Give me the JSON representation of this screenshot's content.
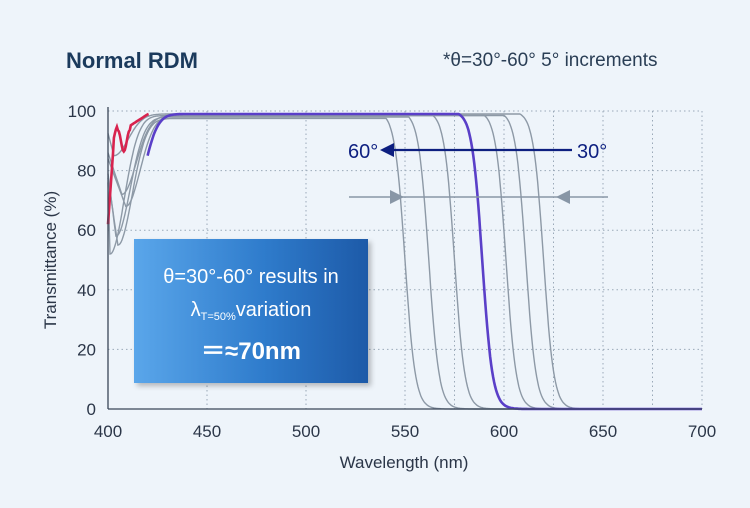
{
  "header": {
    "title": "Normal RDM",
    "note": "*θ=30°-60° 5° increments"
  },
  "callout": {
    "line1": "θ=30°-60° results in",
    "lambda": "λ",
    "subscript": "T=50%",
    "variation": "variation",
    "line3": "＝≈70nm"
  },
  "annotations": {
    "label_60": "60°",
    "label_30": "30°"
  },
  "colors": {
    "axis": "#3a4658",
    "grid": "#9aa9b8",
    "gray_curve": "#8d99a6",
    "highlight_curve": "#5a3fc8",
    "red_segment": "#d8234e",
    "arrow_dark": "#0d1f80",
    "arrow_gray": "#8896a6"
  },
  "chart_data": {
    "type": "line",
    "title": "Normal RDM",
    "xlabel": "Wavelength (nm)",
    "ylabel": "Transmittance (%)",
    "xlim": [
      400,
      700
    ],
    "ylim": [
      0,
      100
    ],
    "xticks": [
      400,
      450,
      500,
      550,
      600,
      650,
      700
    ],
    "yticks": [
      0,
      20,
      40,
      60,
      80,
      100
    ],
    "grid": true,
    "series": [
      {
        "angle": 30,
        "edge_50": 620,
        "dip_x": 403,
        "dip_y": 85,
        "plateau": 99
      },
      {
        "angle": 35,
        "edge_50": 611,
        "dip_x": 407,
        "dip_y": 72,
        "plateau": 98.5
      },
      {
        "angle": 40,
        "edge_50": 601,
        "dip_x": 409,
        "dip_y": 68,
        "plateau": 98.5
      },
      {
        "angle": 45,
        "edge_50": 589,
        "dip_x": 410,
        "dip_y": 62,
        "plateau": 99,
        "highlight": true
      },
      {
        "angle": 50,
        "edge_50": 575,
        "dip_x": 401,
        "dip_y": 52,
        "plateau": 98.5
      },
      {
        "angle": 55,
        "edge_50": 562,
        "dip_x": 404,
        "dip_y": 58,
        "plateau": 98
      },
      {
        "angle": 60,
        "edge_50": 550,
        "dip_x": 405,
        "dip_y": 55,
        "plateau": 97.5
      }
    ]
  }
}
